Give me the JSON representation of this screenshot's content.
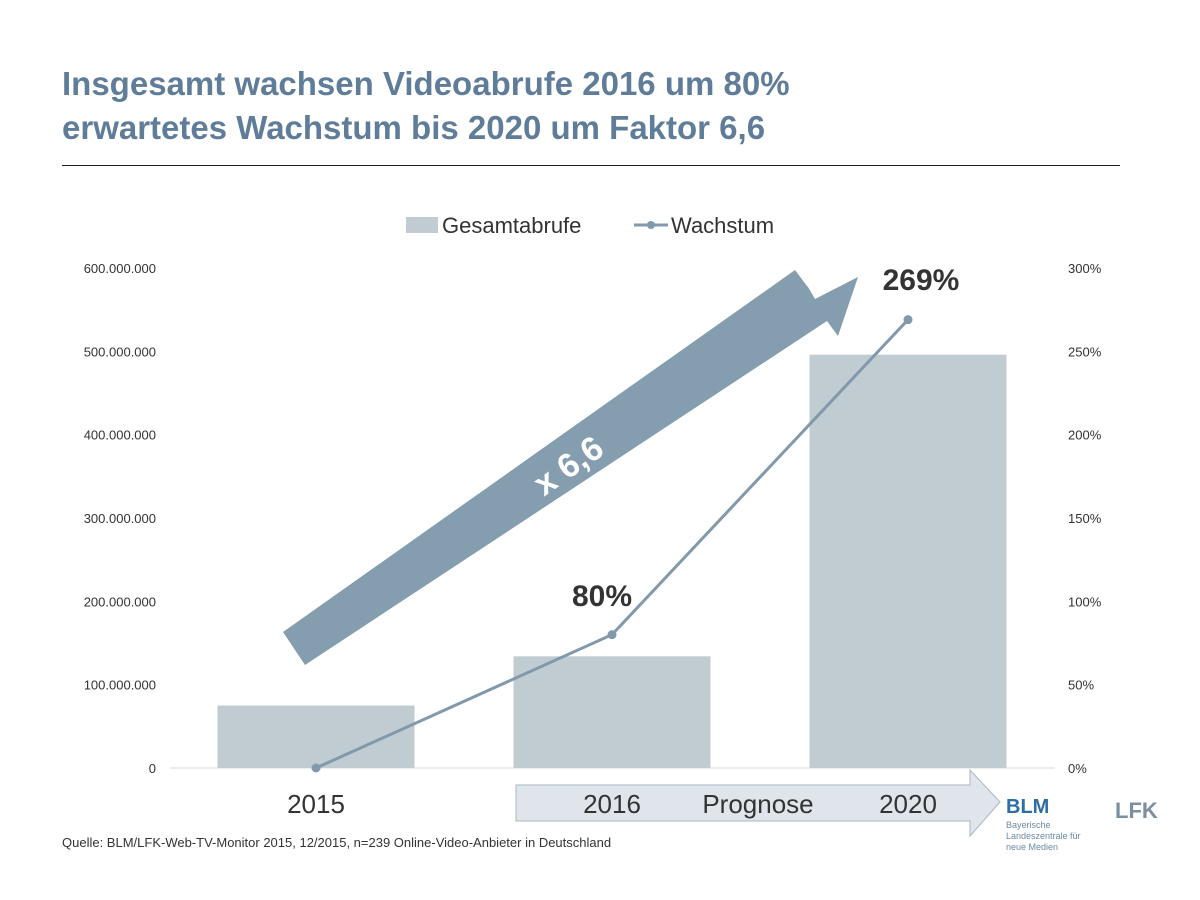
{
  "header": {
    "title_line1": "Insgesamt wachsen Videoabrufe 2016 um 80%",
    "title_line2": "erwartetes Wachstum bis 2020 um Faktor 6,6"
  },
  "chart_data": {
    "type": "bar+line",
    "categories": [
      "2015",
      "2016",
      "2020"
    ],
    "series": [
      {
        "name": "Gesamtabrufe",
        "type": "bar",
        "axis": "left",
        "values": [
          75000000,
          134000000,
          496000000
        ],
        "color": "#c1cbd2"
      },
      {
        "name": "Wachstum",
        "type": "line",
        "axis": "right",
        "values": [
          0,
          80,
          269
        ],
        "color": "#8299ab"
      }
    ],
    "left_axis": {
      "ylim": [
        0,
        600000000
      ],
      "ticks": [
        "0",
        "100.000.000",
        "200.000.000",
        "300.000.000",
        "400.000.000",
        "500.000.000",
        "600.000.000"
      ]
    },
    "right_axis": {
      "ylim": [
        0,
        300
      ],
      "ticks": [
        "0%",
        "50%",
        "100%",
        "150%",
        "200%",
        "250%",
        "300%"
      ]
    },
    "data_labels": [
      "80%",
      "269%"
    ],
    "annotations": {
      "arrow_label": "x 6,6",
      "forecast_label": "Prognose"
    },
    "legend": "top",
    "grid": false
  },
  "footer": {
    "source": "Quelle: BLM/LFK-Web-TV-Monitor 2015, 12/2015, n=239 Online-Video-Anbieter in Deutschland",
    "blm_logo": "BLM",
    "blm_text": "Bayerische Landeszentrale für neue Medien",
    "lfk_logo": "LFK"
  }
}
